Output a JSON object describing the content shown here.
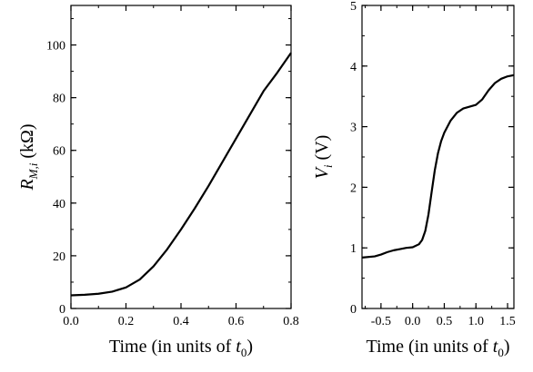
{
  "chart_data": [
    {
      "type": "line",
      "xlabel": "Time (in units of t0)",
      "xlabel_parts": {
        "text": "Time (in units of ",
        "var": "t",
        "sub": "0",
        "close": ")"
      },
      "ylabel": "R_M,i (kΩ)",
      "ylabel_parts": {
        "var": "R",
        "sub": "M,i",
        "unit": " (kΩ)"
      },
      "xlim": [
        0,
        0.8
      ],
      "ylim": [
        0,
        115
      ],
      "xticks": [
        0.0,
        0.2,
        0.4,
        0.6,
        0.8
      ],
      "xtick_labels": [
        "0.0",
        "0.2",
        "0.4",
        "0.6",
        "0.8"
      ],
      "yticks": [
        0,
        20,
        40,
        60,
        80,
        100
      ],
      "ytick_labels": [
        "0",
        "20",
        "40",
        "60",
        "80",
        "100"
      ],
      "x_minor_step": 0.1,
      "y_minor_step": 10,
      "grid": false,
      "series": [
        {
          "x": [
            0.0,
            0.05,
            0.1,
            0.15,
            0.2,
            0.25,
            0.3,
            0.35,
            0.4,
            0.45,
            0.5,
            0.55,
            0.6,
            0.65,
            0.7,
            0.75,
            0.8
          ],
          "y": [
            5.0,
            5.2,
            5.6,
            6.4,
            8.0,
            11.0,
            16.0,
            22.5,
            30.0,
            38.0,
            46.5,
            55.5,
            64.5,
            73.5,
            82.5,
            89.5,
            97.0
          ]
        }
      ]
    },
    {
      "type": "line",
      "xlabel": "Time (in units of t0)",
      "xlabel_parts": {
        "text": "Time (in units of ",
        "var": "t",
        "sub": "0",
        "close": ")"
      },
      "ylabel": "V_i (V)",
      "ylabel_parts": {
        "var": "V",
        "sub": "i",
        "unit": " (V)"
      },
      "xlim": [
        -0.8,
        1.6
      ],
      "ylim": [
        0,
        5
      ],
      "xticks": [
        -0.5,
        0.0,
        0.5,
        1.0,
        1.5
      ],
      "xtick_labels": [
        "-0.5",
        "0.0",
        "0.5",
        "1.0",
        "1.5"
      ],
      "yticks": [
        0,
        1,
        2,
        3,
        4,
        5
      ],
      "ytick_labels": [
        "0",
        "1",
        "2",
        "3",
        "4",
        "5"
      ],
      "x_minor_step": 0.25,
      "y_minor_step": 0.5,
      "grid": false,
      "series": [
        {
          "x": [
            -0.8,
            -0.6,
            -0.5,
            -0.4,
            -0.3,
            -0.2,
            -0.1,
            0.0,
            0.1,
            0.15,
            0.2,
            0.25,
            0.3,
            0.35,
            0.4,
            0.45,
            0.5,
            0.6,
            0.7,
            0.8,
            0.9,
            1.0,
            1.1,
            1.2,
            1.3,
            1.4,
            1.5,
            1.6
          ],
          "y": [
            0.84,
            0.86,
            0.89,
            0.93,
            0.96,
            0.98,
            1.0,
            1.01,
            1.06,
            1.13,
            1.28,
            1.55,
            1.92,
            2.28,
            2.56,
            2.76,
            2.9,
            3.1,
            3.23,
            3.3,
            3.33,
            3.36,
            3.45,
            3.6,
            3.72,
            3.79,
            3.83,
            3.85
          ]
        }
      ]
    }
  ]
}
